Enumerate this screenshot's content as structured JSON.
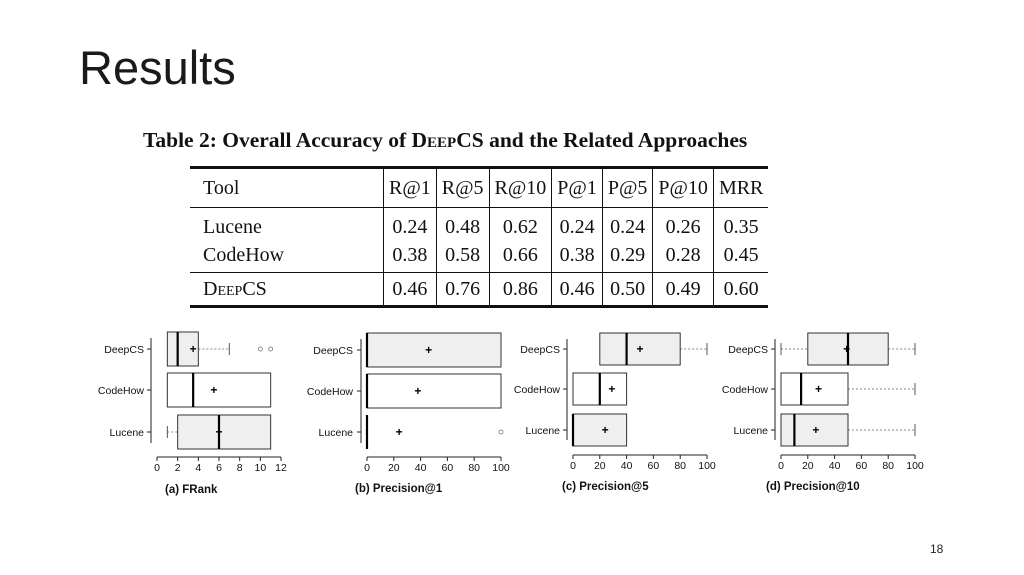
{
  "slide": {
    "title": "Results",
    "page_number": "18"
  },
  "table": {
    "caption_prefix": "Table 2:",
    "caption_pre": " Overall Accuracy of ",
    "caption_sc": "Deep",
    "caption_post": "CS and the Related Approaches",
    "columns": [
      "Tool",
      "R@1",
      "R@5",
      "R@10",
      "P@1",
      "P@5",
      "P@10",
      "MRR"
    ],
    "rows": [
      {
        "tool": "Lucene",
        "values": [
          "0.24",
          "0.48",
          "0.62",
          "0.24",
          "0.24",
          "0.26",
          "0.35"
        ]
      },
      {
        "tool": "CodeHow",
        "values": [
          "0.38",
          "0.58",
          "0.66",
          "0.38",
          "0.29",
          "0.28",
          "0.45"
        ]
      },
      {
        "tool_sc": "Deep",
        "tool_rest": "CS",
        "values": [
          "0.46",
          "0.76",
          "0.86",
          "0.46",
          "0.50",
          "0.49",
          "0.60"
        ]
      }
    ]
  },
  "chart_data": [
    {
      "type": "boxplot",
      "caption": "(a) FRank",
      "categories": [
        "DeepCS",
        "CodeHow",
        "Lucene"
      ],
      "xlim": [
        0,
        12
      ],
      "xticks": [
        0,
        2,
        4,
        6,
        8,
        10,
        12
      ],
      "boxes": [
        {
          "name": "DeepCS",
          "whisker_low": 1,
          "q1": 1,
          "median": 2,
          "q3": 4,
          "whisker_high": 7,
          "mean": 3.5,
          "outliers": [
            10,
            11
          ]
        },
        {
          "name": "CodeHow",
          "whisker_low": 1,
          "q1": 1,
          "median": 3.5,
          "q3": 11,
          "whisker_high": 11,
          "mean": 5.5,
          "outliers": []
        },
        {
          "name": "Lucene",
          "whisker_low": 1,
          "q1": 2,
          "median": 6,
          "q3": 11,
          "whisker_high": 11,
          "mean": 6,
          "outliers": []
        }
      ]
    },
    {
      "type": "boxplot",
      "caption": "(b) Precision@1",
      "categories": [
        "DeepCS",
        "CodeHow",
        "Lucene"
      ],
      "xlim": [
        0,
        100
      ],
      "xticks": [
        0,
        20,
        40,
        60,
        80,
        100
      ],
      "boxes": [
        {
          "name": "DeepCS",
          "whisker_low": 0,
          "q1": 0,
          "median": 0,
          "q3": 100,
          "whisker_high": 100,
          "mean": 46,
          "outliers": []
        },
        {
          "name": "CodeHow",
          "whisker_low": 0,
          "q1": 0,
          "median": 0,
          "q3": 100,
          "whisker_high": 100,
          "mean": 38,
          "outliers": []
        },
        {
          "name": "Lucene",
          "whisker_low": 0,
          "q1": 0,
          "median": 0,
          "q3": 0,
          "whisker_high": 0,
          "mean": 24,
          "outliers": [
            100
          ]
        }
      ]
    },
    {
      "type": "boxplot",
      "caption": "(c) Precision@5",
      "categories": [
        "DeepCS",
        "CodeHow",
        "Lucene"
      ],
      "xlim": [
        0,
        100
      ],
      "xticks": [
        0,
        20,
        40,
        60,
        80,
        100
      ],
      "boxes": [
        {
          "name": "DeepCS",
          "whisker_low": 20,
          "q1": 20,
          "median": 40,
          "q3": 80,
          "whisker_high": 100,
          "mean": 50,
          "outliers": []
        },
        {
          "name": "CodeHow",
          "whisker_low": 0,
          "q1": 0,
          "median": 20,
          "q3": 40,
          "whisker_high": 40,
          "mean": 29,
          "outliers": []
        },
        {
          "name": "Lucene",
          "whisker_low": 0,
          "q1": 0,
          "median": 0,
          "q3": 40,
          "whisker_high": 40,
          "mean": 24,
          "outliers": []
        }
      ]
    },
    {
      "type": "boxplot",
      "caption": "(d) Precision@10",
      "categories": [
        "DeepCS",
        "CodeHow",
        "Lucene"
      ],
      "xlim": [
        0,
        100
      ],
      "xticks": [
        0,
        20,
        40,
        60,
        80,
        100
      ],
      "boxes": [
        {
          "name": "DeepCS",
          "whisker_low": 0,
          "q1": 20,
          "median": 50,
          "q3": 80,
          "whisker_high": 100,
          "mean": 49,
          "outliers": []
        },
        {
          "name": "CodeHow",
          "whisker_low": 0,
          "q1": 0,
          "median": 15,
          "q3": 50,
          "whisker_high": 100,
          "mean": 28,
          "outliers": []
        },
        {
          "name": "Lucene",
          "whisker_low": 0,
          "q1": 0,
          "median": 10,
          "q3": 50,
          "whisker_high": 100,
          "mean": 26,
          "outliers": []
        }
      ]
    }
  ]
}
